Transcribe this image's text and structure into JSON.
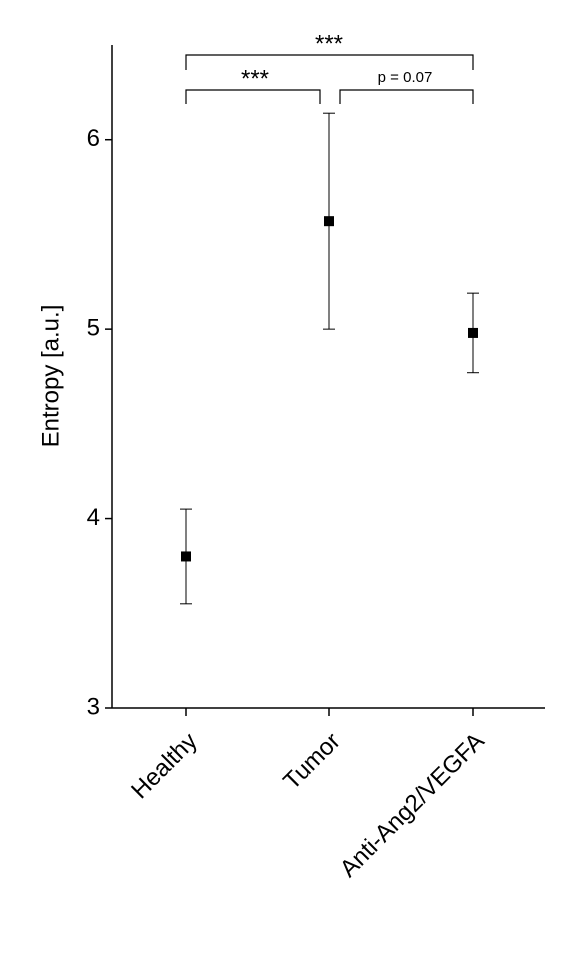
{
  "chart_data": {
    "type": "scatter",
    "y_label": "Entropy [a.u.]",
    "categories": [
      "Healthy",
      "Tumor",
      "Anti-Ang2/VEGFA"
    ],
    "values": [
      3.8,
      5.57,
      4.98
    ],
    "errors": [
      0.25,
      0.57,
      0.21
    ],
    "color": "#000000",
    "ylim": [
      3,
      6.5
    ],
    "yticks": [
      3,
      4,
      5,
      6
    ],
    "annotations": [
      "***",
      "***",
      "p = 0.07"
    ]
  }
}
